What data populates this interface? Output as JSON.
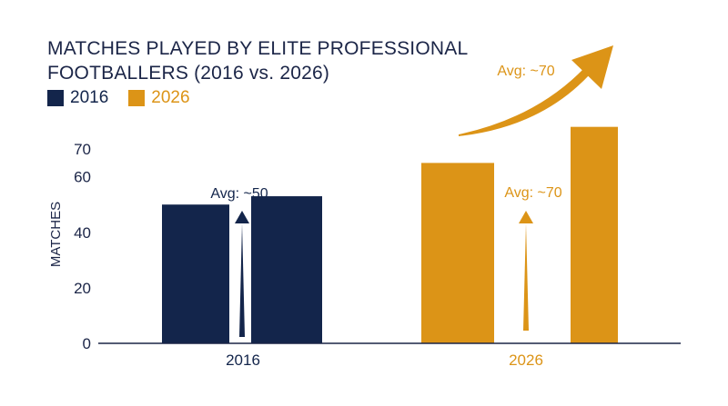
{
  "colors": {
    "navy": "#13254b",
    "gold": "#dc9417",
    "axis": "#1b2547"
  },
  "chart_data": {
    "type": "bar",
    "title_lines": [
      "MATCHES PLAYED BY ELITE PROFESSIONAL",
      "FOOTBALLERS (2016 vs. 2026)"
    ],
    "ylabel": "MATCHES",
    "yticks": [
      0,
      20,
      40,
      60,
      70
    ],
    "ylim": [
      0,
      72
    ],
    "legend": [
      {
        "label": "2016",
        "color": "#13254b"
      },
      {
        "label": "2026",
        "color": "#dc9417"
      }
    ],
    "groups": [
      {
        "category": "2016",
        "color": "#13254b",
        "values": [
          50,
          53
        ],
        "annotation": "Avg: ~50"
      },
      {
        "category": "2026",
        "color": "#dc9417",
        "values": [
          65,
          78
        ],
        "annotation": "Avg: ~70"
      }
    ],
    "trend_annotation": "Avg: ~70"
  }
}
